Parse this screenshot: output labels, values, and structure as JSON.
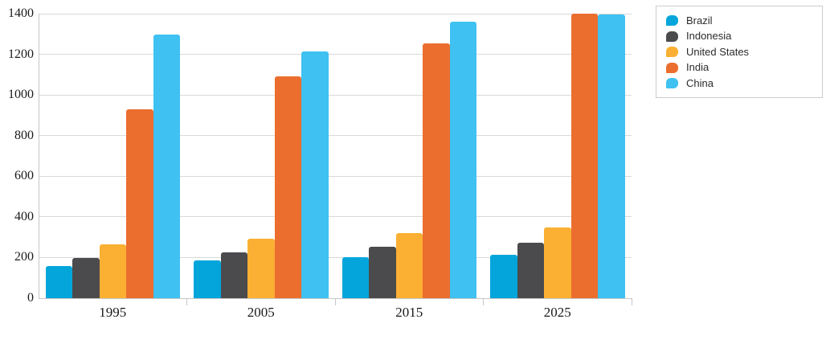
{
  "chart_data": {
    "type": "bar",
    "title": "",
    "xlabel": "",
    "ylabel": "",
    "categories": [
      "1995",
      "2005",
      "2015",
      "2025"
    ],
    "series": [
      {
        "name": "Brazil",
        "color": "#03A5DB",
        "values": [
          160,
          184,
          203,
          214
        ]
      },
      {
        "name": "Indonesia",
        "color": "#4B4B4E",
        "values": [
          197,
          227,
          254,
          273
        ]
      },
      {
        "name": "United States",
        "color": "#FBB033",
        "values": [
          266,
          294,
          320,
          347
        ]
      },
      {
        "name": "India",
        "color": "#EB6E2E",
        "values": [
          928,
          1090,
          1252,
          1400
        ]
      },
      {
        "name": "China",
        "color": "#3FC1F1",
        "values": [
          1298,
          1216,
          1362,
          1398
        ]
      }
    ],
    "ylim": [
      0,
      1400
    ],
    "ytick_step": 200,
    "yticks": [
      0,
      200,
      400,
      600,
      800,
      1000,
      1200,
      1400
    ],
    "grid": "horizontal",
    "legend_position": "top-right"
  },
  "colors": {
    "gridline": "#d9d9d9",
    "axis": "#c6c6c6",
    "axis_label": "#1a1a1a",
    "legend_border": "#cdcdcd",
    "background": "#ffffff"
  }
}
